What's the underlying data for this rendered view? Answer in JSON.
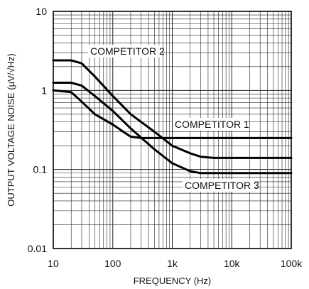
{
  "chart_data": {
    "type": "line",
    "xlabel": "FREQUENCY (Hz)",
    "ylabel": "OUTPUT VOLTAGE NOISE (µV/√Hz)",
    "x_scale": "log",
    "y_scale": "log",
    "xlim": [
      10,
      100000
    ],
    "ylim": [
      0.01,
      10
    ],
    "grid": true,
    "x_ticks": [
      10,
      100,
      1000,
      10000,
      100000
    ],
    "x_tick_labels": [
      "10",
      "100",
      "1k",
      "10k",
      "100k"
    ],
    "y_ticks": [
      0.01,
      0.1,
      1,
      10
    ],
    "y_tick_labels": [
      "0.01",
      "0.1",
      "1",
      "10"
    ],
    "series": [
      {
        "name": "COMPETITOR 2",
        "x": [
          10,
          20,
          30,
          50,
          100,
          200,
          500,
          1000,
          2000,
          3000,
          5000,
          10000,
          100000
        ],
        "y": [
          2.4,
          2.4,
          2.2,
          1.5,
          0.85,
          0.5,
          0.3,
          0.2,
          0.16,
          0.145,
          0.14,
          0.14,
          0.14
        ]
      },
      {
        "name": "COMPETITOR 1",
        "x": [
          10,
          20,
          30,
          50,
          100,
          150,
          200,
          300,
          500,
          1000,
          10000,
          100000
        ],
        "y": [
          1.0,
          0.95,
          0.72,
          0.5,
          0.37,
          0.3,
          0.26,
          0.25,
          0.25,
          0.25,
          0.25,
          0.25
        ]
      },
      {
        "name": "COMPETITOR 3",
        "x": [
          10,
          20,
          30,
          50,
          100,
          200,
          500,
          1000,
          2000,
          3000,
          5000,
          10000,
          100000
        ],
        "y": [
          1.25,
          1.25,
          1.15,
          0.85,
          0.55,
          0.33,
          0.18,
          0.12,
          0.095,
          0.09,
          0.09,
          0.09,
          0.09
        ]
      }
    ]
  }
}
